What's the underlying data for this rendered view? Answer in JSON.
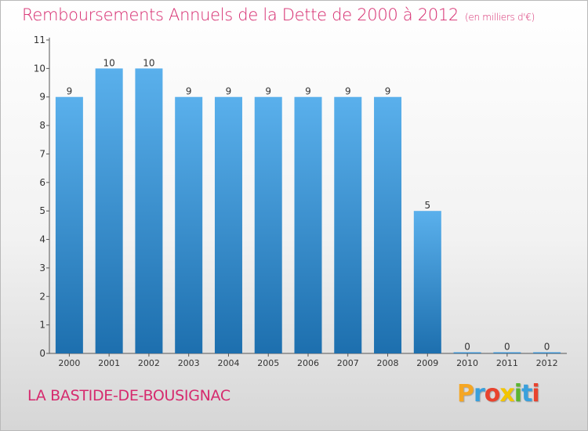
{
  "page": {
    "title": "Remboursements Annuels de la Dette de 2000 à 2012",
    "unit": "(en milliers d'€)",
    "location": "LA BASTIDE-DE-BOUSIGNAC",
    "logo": {
      "letters": [
        "P",
        "r",
        "o",
        "x",
        "i",
        "t",
        "i"
      ],
      "colors": [
        "#f5a623",
        "#3aa0dc",
        "#e8432e",
        "#f2c500",
        "#5bb531",
        "#3aa0dc",
        "#e8432e"
      ]
    }
  },
  "colors": {
    "title": "#d62a6e",
    "bar_top": "#5ab0ec",
    "bar_bottom": "#1d6fae",
    "axis": "#555555"
  },
  "chart_data": {
    "type": "bar",
    "categories": [
      "2000",
      "2001",
      "2002",
      "2003",
      "2004",
      "2005",
      "2006",
      "2007",
      "2008",
      "2009",
      "2010",
      "2011",
      "2012"
    ],
    "values": [
      9,
      10,
      10,
      9,
      9,
      9,
      9,
      9,
      9,
      5,
      0,
      0,
      0
    ],
    "data_labels": [
      "9",
      "10",
      "10",
      "9",
      "9",
      "9",
      "9",
      "9",
      "9",
      "5",
      "0",
      "0",
      "0"
    ],
    "yticks": [
      "0",
      "1",
      "2",
      "3",
      "4",
      "5",
      "6",
      "7",
      "8",
      "9",
      "10",
      "11"
    ],
    "ylim": [
      0,
      11
    ],
    "grid": false,
    "legend": "none"
  }
}
